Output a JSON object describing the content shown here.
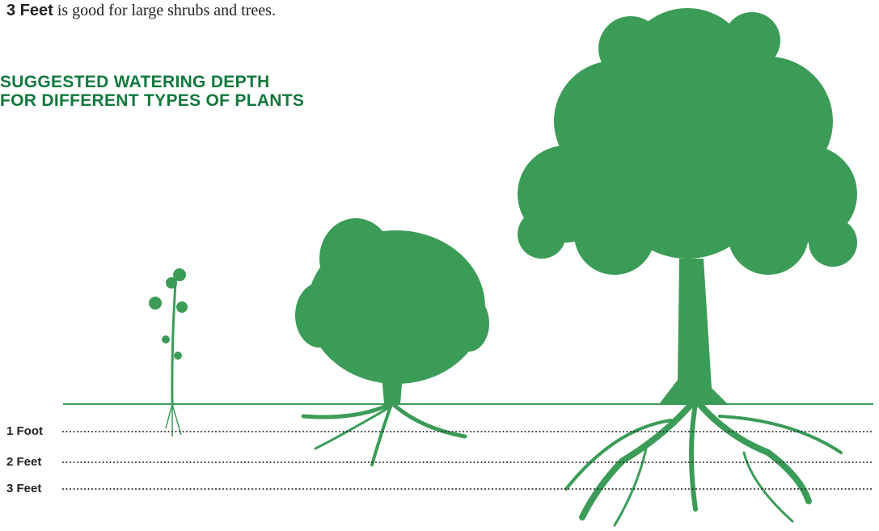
{
  "intro": {
    "bold": "3 Feet",
    "text": "is good for large shrubs and trees."
  },
  "title": [
    "SUGGESTED WATERING DEPTH",
    "FOR DIFFERENT TYPES OF PLANTS"
  ],
  "depths": [
    "1 Foot",
    "2 Feet",
    "3 Feet"
  ]
}
